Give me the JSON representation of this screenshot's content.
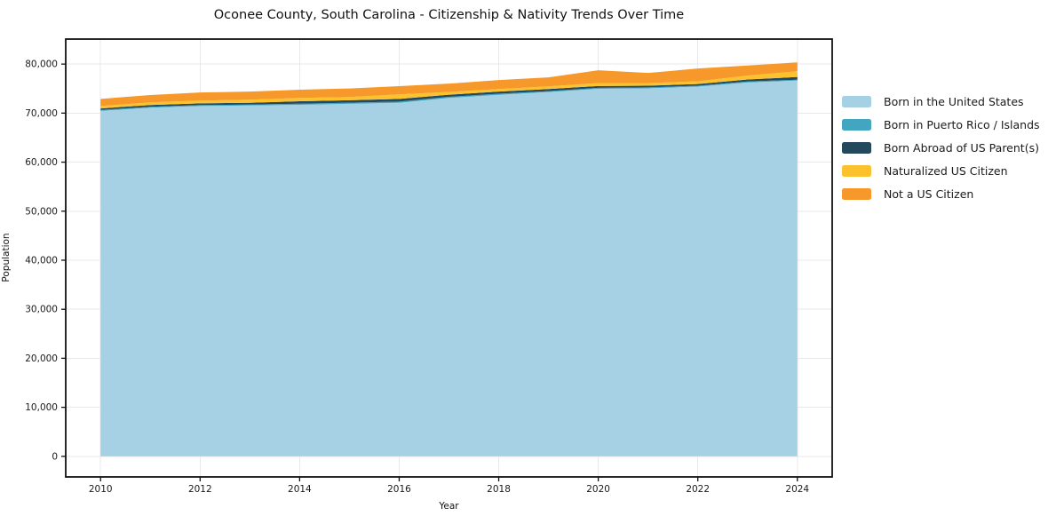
{
  "figure": {
    "title": "Oconee County, South Carolina - Citizenship & Nativity Trends Over Time",
    "xlabel": "Year",
    "ylabel": "Population"
  },
  "chart_data": {
    "type": "area",
    "stacked": true,
    "title": "Oconee County, South Carolina - Citizenship & Nativity Trends Over Time",
    "xlabel": "Year",
    "ylabel": "Population",
    "x": [
      2010,
      2011,
      2012,
      2013,
      2014,
      2015,
      2016,
      2017,
      2018,
      2019,
      2020,
      2021,
      2022,
      2023,
      2024
    ],
    "series": [
      {
        "name": "Born in the United States",
        "color": "#a6d1e5",
        "values": [
          70450,
          71100,
          71450,
          71550,
          71700,
          71900,
          72100,
          73100,
          73740,
          74290,
          74950,
          75050,
          75400,
          76250,
          76650
        ]
      },
      {
        "name": "Born in Puerto Rico / Islands",
        "color": "#42a6c0",
        "values": [
          200,
          200,
          200,
          200,
          220,
          230,
          250,
          230,
          210,
          200,
          200,
          200,
          200,
          200,
          160
        ]
      },
      {
        "name": "Born Abroad of US Parent(s)",
        "color": "#24495c",
        "values": [
          300,
          350,
          350,
          350,
          500,
          500,
          550,
          420,
          430,
          430,
          370,
          340,
          340,
          400,
          560
        ]
      },
      {
        "name": "Naturalized US Citizen",
        "color": "#fcc22e",
        "values": [
          500,
          550,
          560,
          640,
          680,
          640,
          930,
          580,
          540,
          540,
          610,
          550,
          550,
          790,
          1180
        ]
      },
      {
        "name": "Not a US Citizen",
        "color": "#f6982a",
        "values": [
          1450,
          1500,
          1640,
          1660,
          1670,
          1760,
          1670,
          1680,
          1820,
          1820,
          2600,
          2050,
          2600,
          2060,
          1800
        ]
      }
    ],
    "totals": [
      72900,
      73700,
      74200,
      74400,
      74770,
      75030,
      75500,
      76010,
      76740,
      77280,
      78730,
      78190,
      79090,
      79700,
      80350
    ],
    "xticks": {
      "values": [
        2010,
        2012,
        2014,
        2016,
        2018,
        2020,
        2022,
        2024
      ],
      "labels": [
        "2010",
        "2012",
        "2014",
        "2016",
        "2018",
        "2020",
        "2022",
        "2024"
      ]
    },
    "yticks": {
      "values": [
        0,
        10000,
        20000,
        30000,
        40000,
        50000,
        60000,
        70000,
        80000
      ],
      "labels": [
        "0",
        "10,000",
        "20,000",
        "30,000",
        "40,000",
        "50,000",
        "60,000",
        "70,000",
        "80,000"
      ]
    },
    "xlim": [
      2009.3,
      2024.7
    ],
    "ylim": [
      -4200,
      85100
    ],
    "grid": true,
    "legend_position": "right"
  },
  "colors": {
    "background": "#ffffff",
    "spine": "#111111",
    "grid": "#e9e9e9",
    "tick": "#111111",
    "tick_label": "#1a1a1a"
  }
}
